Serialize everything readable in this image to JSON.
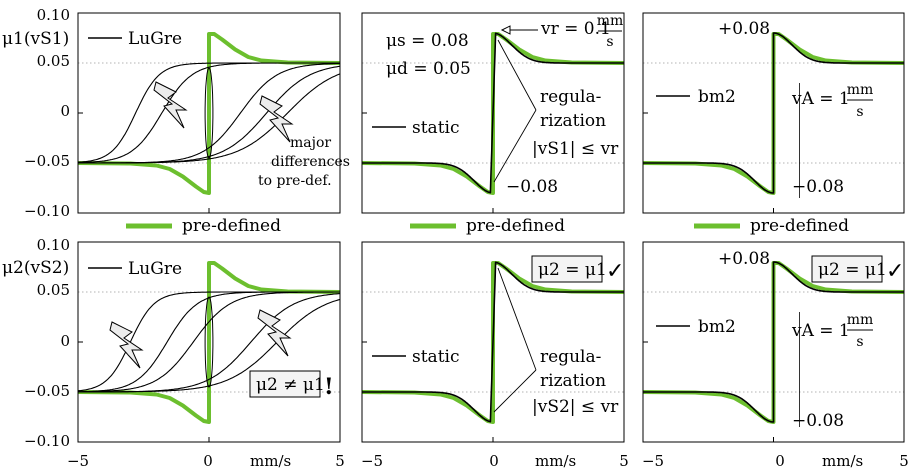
{
  "colors": {
    "predefined": "#6cbf2e",
    "model": "#000000",
    "grid": "#9a9a9a",
    "panel_frame": "#000000"
  },
  "rows": [
    {
      "ylabel": "μ1(vS1)",
      "ytick_labels": [
        "0.10",
        "0.05",
        "0",
        "−0.05",
        "−0.10"
      ],
      "legend_text": "pre-defined",
      "panels": [
        {
          "key": "lugre1",
          "legend_model": "LuGre",
          "annotation_lines": [
            "major",
            "differences",
            "to pre-def."
          ]
        },
        {
          "key": "static1",
          "legend_model": "static",
          "mu_s": "μs = 0.08",
          "mu_d": "μd = 0.05",
          "vr_text": "vr = 0.1",
          "vr_unit_num": "mm",
          "vr_unit_den": "s",
          "peak_label": "−0.08",
          "reg_lines": [
            "regula-",
            "rization",
            "|vS1| ≤ vr"
          ]
        },
        {
          "key": "bm21",
          "legend_model": "bm2",
          "peak_pos": "+0.08",
          "peak_neg": "−0.08",
          "va_text": "vA = 1",
          "va_unit_num": "mm",
          "va_unit_den": "s"
        }
      ]
    },
    {
      "ylabel": "μ2(vS2)",
      "ytick_labels": [
        "0.10",
        "0.05",
        "0",
        "−0.05",
        "−0.10"
      ],
      "panels": [
        {
          "key": "lugre2",
          "legend_model": "LuGre",
          "box_text": "μ2 ≠ μ1",
          "box_mark": "!"
        },
        {
          "key": "static2",
          "legend_model": "static",
          "box_text": "μ2 = μ1",
          "box_mark": "✓",
          "reg_lines": [
            "regula-",
            "rization",
            "|vS2| ≤ vr"
          ]
        },
        {
          "key": "bm22",
          "legend_model": "bm2",
          "box_text": "μ2 = μ1",
          "box_mark": "✓",
          "peak_pos": "+0.08",
          "peak_neg": "−0.08",
          "va_text": "vA = 1",
          "va_unit_num": "mm",
          "va_unit_den": "s"
        }
      ]
    }
  ],
  "x_axis": {
    "tick_labels": [
      "−5",
      "0",
      "5"
    ],
    "unit": "mm/s"
  },
  "chart_data": {
    "type": "line",
    "layout": "2x3 panels",
    "x_range": [
      -5,
      5
    ],
    "y_range": [
      -0.1,
      0.1
    ],
    "x_ticks": [
      -5,
      0,
      5
    ],
    "y_ticks": [
      0.1,
      0.05,
      0,
      -0.05,
      -0.1
    ],
    "grid": "horizontal dotted lines at ±0.05",
    "legend_entries": [
      "LuGre",
      "static",
      "bm2",
      "pre-defined"
    ],
    "predefined_curve": {
      "x": [
        -5,
        -3,
        -2,
        -1.5,
        -1,
        -0.5,
        -0.2,
        0,
        0.2,
        0.5,
        1,
        1.5,
        2,
        3,
        5
      ],
      "y": [
        -0.05,
        -0.0505,
        -0.0525,
        -0.056,
        -0.0635,
        -0.0735,
        -0.079,
        -0.08,
        0.079,
        0.0735,
        0.0635,
        0.056,
        0.0525,
        0.0505,
        0.05
      ]
    },
    "mu_s": 0.08,
    "mu_d": 0.05,
    "v_r": 0.1,
    "v_A": 1
  }
}
